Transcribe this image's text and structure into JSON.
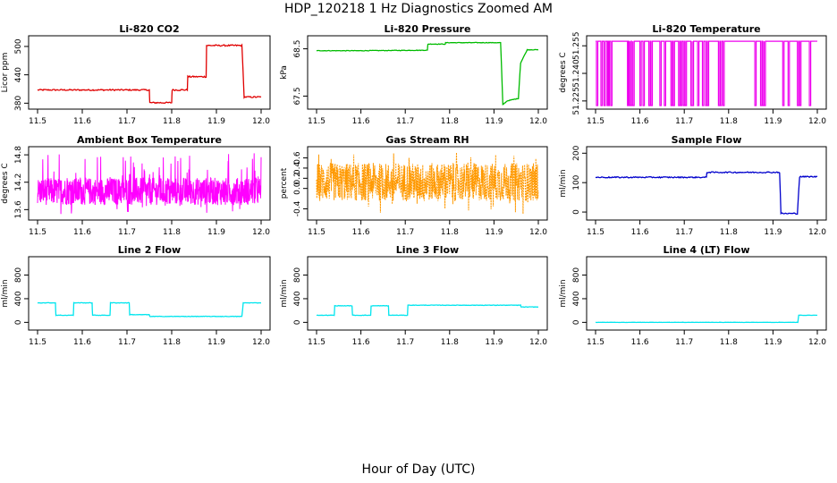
{
  "figure": {
    "title": "HDP_120218  1 Hz Diagnostics Zoomed AM",
    "xlabel": "Hour of Day (UTC)"
  },
  "chart_data": [
    {
      "type": "line",
      "title": "Li-820 CO2",
      "ylabel": "Licor ppm",
      "color": "#e00000",
      "x_ticks": [
        "11.5",
        "11.6",
        "11.7",
        "11.8",
        "11.9",
        "12.0"
      ],
      "xlim": [
        11.5,
        12.0
      ],
      "y_ticks": [
        "380",
        "440",
        "500"
      ],
      "ylim": [
        375,
        515
      ],
      "noise": 1.5,
      "series": [
        {
          "x": [
            11.5,
            11.75,
            11.751,
            11.8,
            11.801,
            11.835,
            11.836,
            11.877,
            11.878,
            11.957,
            11.962,
            12.0
          ],
          "y": [
            408,
            408,
            381,
            381,
            408,
            408,
            436,
            436,
            502,
            502,
            393,
            393
          ]
        }
      ]
    },
    {
      "type": "line",
      "title": "Li-820 Pressure",
      "ylabel": "kPa",
      "color": "#00bb00",
      "x_ticks": [
        "11.5",
        "11.6",
        "11.7",
        "11.8",
        "11.9",
        "12.0"
      ],
      "xlim": [
        11.5,
        12.0
      ],
      "y_ticks": [
        "67.5",
        "68.5"
      ],
      "ylim": [
        67.3,
        68.7
      ],
      "noise": 0.006,
      "series": [
        {
          "x": [
            11.5,
            11.6,
            11.75,
            11.751,
            11.79,
            11.791,
            11.915,
            11.92,
            11.93,
            11.955,
            11.96,
            11.975,
            12.0
          ],
          "y": [
            68.46,
            68.46,
            68.47,
            68.6,
            68.6,
            68.63,
            68.63,
            67.32,
            67.4,
            67.45,
            68.2,
            68.48,
            68.48
          ]
        }
      ]
    },
    {
      "type": "line",
      "title": "Li-820 Temperature",
      "ylabel": "degrees C",
      "color": "#ee00ee",
      "x_ticks": [
        "11.5",
        "11.6",
        "11.7",
        "11.8",
        "11.9",
        "12.0"
      ],
      "xlim": [
        11.5,
        12.0
      ],
      "y_ticks": [
        "51.225",
        "51.240",
        "51.255"
      ],
      "ylim": [
        51.2225,
        51.2585
      ],
      "baseline": 51.2575,
      "dips": [
        11.502,
        11.512,
        11.519,
        11.526,
        11.528,
        11.534,
        11.572,
        11.574,
        11.577,
        11.581,
        11.584,
        11.6,
        11.607,
        11.62,
        11.625,
        11.645,
        11.655,
        11.67,
        11.675,
        11.687,
        11.692,
        11.698,
        11.702,
        11.715,
        11.718,
        11.73,
        11.741,
        11.748,
        11.752,
        11.777,
        11.781,
        11.787,
        11.859,
        11.872,
        11.877,
        11.88,
        11.922,
        11.934,
        11.955,
        11.96,
        11.982
      ],
      "dip_value": 51.2225
    },
    {
      "type": "line",
      "title": "Ambient Box Temperature",
      "ylabel": "degrees C",
      "color": "#ff00ff",
      "x_ticks": [
        "11.5",
        "11.6",
        "11.7",
        "11.8",
        "11.9",
        "12.0"
      ],
      "xlim": [
        11.5,
        12.0
      ],
      "y_ticks": [
        "13.6",
        "14.2",
        "14.8"
      ],
      "ylim": [
        13.45,
        14.9
      ],
      "band": [
        13.7,
        14.3
      ],
      "spike_range": [
        13.5,
        14.85
      ]
    },
    {
      "type": "line",
      "title": "Gas Stream RH",
      "ylabel": "percent",
      "color": "#ff9900",
      "x_ticks": [
        "11.5",
        "11.6",
        "11.7",
        "11.8",
        "11.9",
        "12.0"
      ],
      "xlim": [
        11.5,
        12.0
      ],
      "y_ticks": [
        "-0.4",
        "0.0",
        "0.2",
        "0.4",
        "0.6"
      ],
      "ylim": [
        -0.55,
        0.75
      ],
      "band": [
        -0.25,
        0.5
      ],
      "spike_range": [
        -0.5,
        0.72
      ]
    },
    {
      "type": "line",
      "title": "Sample Flow",
      "ylabel": "ml/min",
      "color": "#0000cc",
      "x_ticks": [
        "11.5",
        "11.6",
        "11.7",
        "11.8",
        "11.9",
        "12.0"
      ],
      "xlim": [
        11.5,
        12.0
      ],
      "y_ticks": [
        "0",
        "100",
        "200"
      ],
      "ylim": [
        -15,
        210
      ],
      "noise": 2,
      "series": [
        {
          "x": [
            11.5,
            11.75,
            11.751,
            11.915,
            11.918,
            11.955,
            11.96,
            12.0
          ],
          "y": [
            118,
            118,
            135,
            135,
            -5,
            -5,
            120,
            120
          ]
        }
      ]
    },
    {
      "type": "line",
      "title": "Line 2 Flow",
      "ylabel": "ml/min",
      "color": "#00e5ee",
      "x_ticks": [
        "11.5",
        "11.6",
        "11.7",
        "11.8",
        "11.9",
        "12.0"
      ],
      "xlim": [
        11.5,
        12.0
      ],
      "y_ticks": [
        "0",
        "400",
        "800"
      ],
      "ylim": [
        -70,
        1050
      ],
      "noise": 4,
      "series": [
        {
          "x": [
            11.5,
            11.54,
            11.541,
            11.58,
            11.581,
            11.622,
            11.623,
            11.662,
            11.663,
            11.705,
            11.706,
            11.75,
            11.751,
            11.957,
            11.96,
            12.0
          ],
          "y": [
            330,
            330,
            120,
            120,
            330,
            330,
            120,
            120,
            330,
            330,
            130,
            130,
            100,
            100,
            330,
            330
          ]
        }
      ]
    },
    {
      "type": "line",
      "title": "Line 3 Flow",
      "ylabel": "ml/min",
      "color": "#00e5ee",
      "x_ticks": [
        "11.5",
        "11.6",
        "11.7",
        "11.8",
        "11.9",
        "12.0"
      ],
      "xlim": [
        11.5,
        12.0
      ],
      "y_ticks": [
        "0",
        "400",
        "800"
      ],
      "ylim": [
        -70,
        1050
      ],
      "noise": 4,
      "series": [
        {
          "x": [
            11.5,
            11.54,
            11.541,
            11.58,
            11.581,
            11.622,
            11.623,
            11.662,
            11.663,
            11.705,
            11.706,
            11.8,
            11.96,
            11.961,
            12.0
          ],
          "y": [
            120,
            120,
            280,
            280,
            120,
            120,
            280,
            280,
            120,
            120,
            290,
            290,
            290,
            260,
            260
          ]
        }
      ]
    },
    {
      "type": "line",
      "title": "Line 4 (LT) Flow",
      "ylabel": "ml/min",
      "color": "#00e5ee",
      "x_ticks": [
        "11.5",
        "11.6",
        "11.7",
        "11.8",
        "11.9",
        "12.0"
      ],
      "xlim": [
        11.5,
        12.0
      ],
      "y_ticks": [
        "0",
        "400",
        "800"
      ],
      "ylim": [
        -70,
        1050
      ],
      "noise": 2,
      "series": [
        {
          "x": [
            11.5,
            11.956,
            11.958,
            12.0
          ],
          "y": [
            0,
            0,
            120,
            120
          ]
        }
      ]
    }
  ]
}
